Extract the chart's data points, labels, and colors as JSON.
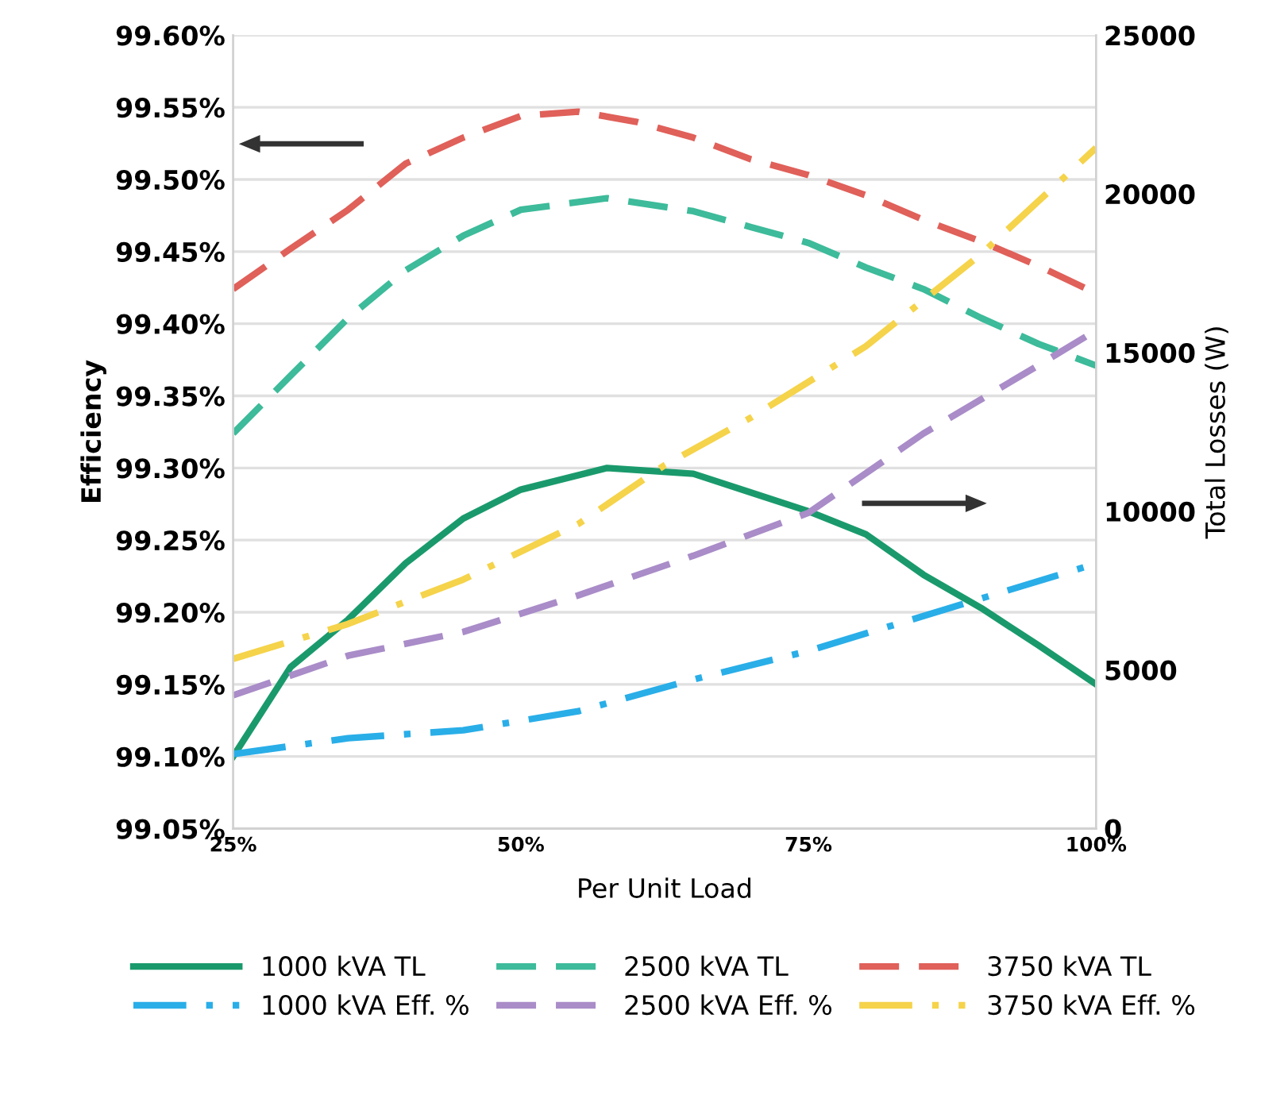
{
  "chart_data": {
    "type": "line",
    "xlabel": "Per Unit Load",
    "ylabel": "Efficiency",
    "y2label": "Total Losses (W)",
    "xlim": [
      0.25,
      1.0
    ],
    "xticks": [
      {
        "value": 0.25,
        "label": "25%"
      },
      {
        "value": 0.5,
        "label": "50%"
      },
      {
        "value": 0.75,
        "label": "75%"
      },
      {
        "value": 1.0,
        "label": "100%"
      }
    ],
    "ylim": [
      99.05,
      99.6
    ],
    "yticks": [
      {
        "value": 99.05,
        "label": "99.05%"
      },
      {
        "value": 99.1,
        "label": "99.10%"
      },
      {
        "value": 99.15,
        "label": "99.15%"
      },
      {
        "value": 99.2,
        "label": "99.20%"
      },
      {
        "value": 99.25,
        "label": "99.25%"
      },
      {
        "value": 99.3,
        "label": "99.30%"
      },
      {
        "value": 99.35,
        "label": "99.35%"
      },
      {
        "value": 99.4,
        "label": "99.40%"
      },
      {
        "value": 99.45,
        "label": "99.45%"
      },
      {
        "value": 99.5,
        "label": "99.50%"
      },
      {
        "value": 99.55,
        "label": "99.55%"
      },
      {
        "value": 99.6,
        "label": "99.60%"
      }
    ],
    "y2lim": [
      0,
      25000
    ],
    "y2ticks": [
      0,
      5000,
      10000,
      15000,
      20000,
      25000
    ],
    "grid": "y",
    "legend": "bottom",
    "marker": "none",
    "series": [
      {
        "name": "1000 kVA TL",
        "color": "#1a9a6c",
        "line_style": "solid",
        "x": [
          0.25,
          0.3,
          0.35,
          0.4,
          0.45,
          0.5,
          0.575,
          0.65,
          0.7,
          0.75,
          0.8,
          0.85,
          0.9,
          0.95,
          1.0
        ],
        "values": [
          99.1,
          99.162,
          99.195,
          99.234,
          99.265,
          99.285,
          99.3,
          99.296,
          99.283,
          99.27,
          99.254,
          99.226,
          99.203,
          99.177,
          99.15
        ]
      },
      {
        "name": "2500 kVA TL",
        "color": "#3dbb9a",
        "line_style": "dashed",
        "x": [
          0.25,
          0.3,
          0.35,
          0.4,
          0.45,
          0.5,
          0.575,
          0.65,
          0.7,
          0.75,
          0.8,
          0.85,
          0.9,
          0.95,
          1.0
        ],
        "values": [
          99.324,
          99.364,
          99.404,
          99.437,
          99.461,
          99.479,
          99.487,
          99.478,
          99.467,
          99.456,
          99.439,
          99.424,
          99.404,
          99.386,
          99.371
        ]
      },
      {
        "name": "3750 kVA TL",
        "color": "#e0605a",
        "line_style": "dashed",
        "x": [
          0.25,
          0.3,
          0.35,
          0.4,
          0.45,
          0.5,
          0.55,
          0.6,
          0.65,
          0.7,
          0.75,
          0.8,
          0.85,
          0.9,
          0.95,
          1.0
        ],
        "values": [
          99.424,
          99.452,
          99.479,
          99.511,
          99.529,
          99.544,
          99.547,
          99.54,
          99.529,
          99.514,
          99.503,
          99.489,
          99.472,
          99.457,
          99.44,
          99.421
        ]
      },
      {
        "name": "1000 kVA Eff. %",
        "color": "#29aee8",
        "line_style": "dashdot",
        "axis": "y2",
        "x": [
          0.25,
          0.35,
          0.45,
          0.55,
          0.65,
          0.75,
          0.85,
          1.0
        ],
        "values": [
          2350,
          2850,
          3100,
          3700,
          4700,
          5600,
          6700,
          8350
        ]
      },
      {
        "name": "2500 kVA Eff. %",
        "color": "#a98cc8",
        "line_style": "dashed",
        "axis": "y2",
        "x": [
          0.25,
          0.35,
          0.45,
          0.55,
          0.65,
          0.75,
          0.85,
          0.95,
          1.0
        ],
        "values": [
          4200,
          5450,
          6200,
          7350,
          8600,
          9950,
          12450,
          14600,
          15700
        ]
      },
      {
        "name": "3750 kVA Eff. %",
        "color": "#f5d34a",
        "line_style": "dashdot",
        "axis": "y2",
        "x": [
          0.25,
          0.35,
          0.45,
          0.55,
          0.625,
          0.7,
          0.8,
          0.9,
          1.0
        ],
        "values": [
          5350,
          6450,
          7850,
          9600,
          11450,
          12950,
          15200,
          18100,
          21450
        ]
      }
    ]
  }
}
